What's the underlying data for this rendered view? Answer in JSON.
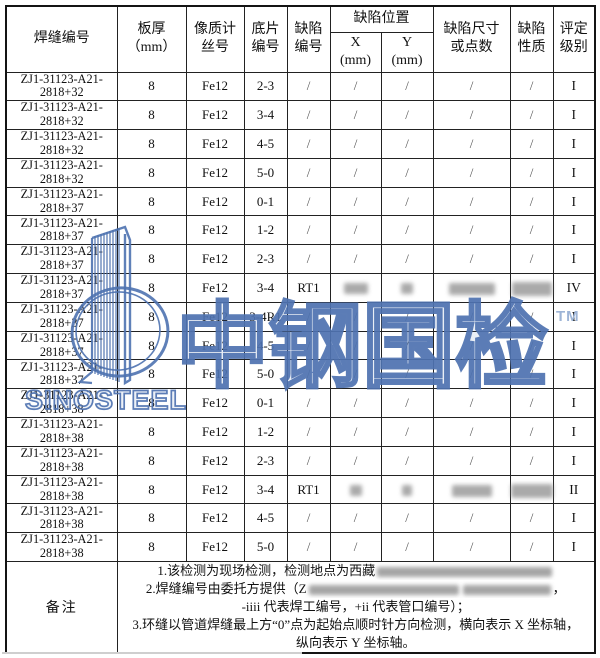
{
  "header": {
    "weld_no": "焊缝编号",
    "thickness_l1": "板厚",
    "thickness_l2": "（mm）",
    "iqi_l1": "像质计",
    "iqi_l2": "丝号",
    "film_l1": "底片",
    "film_l2": "编号",
    "defect_l1": "缺陷",
    "defect_l2": "编号",
    "position": "缺陷位置",
    "x_l1": "X",
    "x_l2": "(mm)",
    "y_l1": "Y",
    "y_l2": "(mm)",
    "size_l1": "缺陷尺寸",
    "size_l2": "或点数",
    "nature_l1": "缺陷",
    "nature_l2": "性质",
    "level_l1": "评定",
    "level_l2": "级别"
  },
  "rows": [
    {
      "weld_line1": "ZJ1-31123-A21-",
      "weld_line2": "2818+32",
      "thickness": "8",
      "iqi": "Fe12",
      "film": "2-3",
      "defect": "/",
      "x": "/",
      "y": "/",
      "size": "/",
      "nature": "/",
      "level": "I"
    },
    {
      "weld_line1": "ZJ1-31123-A21-",
      "weld_line2": "2818+32",
      "thickness": "8",
      "iqi": "Fe12",
      "film": "3-4",
      "defect": "/",
      "x": "/",
      "y": "/",
      "size": "/",
      "nature": "/",
      "level": "I"
    },
    {
      "weld_line1": "ZJ1-31123-A21-",
      "weld_line2": "2818+32",
      "thickness": "8",
      "iqi": "Fe12",
      "film": "4-5",
      "defect": "/",
      "x": "/",
      "y": "/",
      "size": "/",
      "nature": "/",
      "level": "I"
    },
    {
      "weld_line1": "ZJ1-31123-A21-",
      "weld_line2": "2818+32",
      "thickness": "8",
      "iqi": "Fe12",
      "film": "5-0",
      "defect": "/",
      "x": "/",
      "y": "/",
      "size": "/",
      "nature": "/",
      "level": "I"
    },
    {
      "weld_line1": "ZJ1-31123-A21-",
      "weld_line2": "2818+37",
      "thickness": "8",
      "iqi": "Fe12",
      "film": "0-1",
      "defect": "/",
      "x": "/",
      "y": "/",
      "size": "/",
      "nature": "/",
      "level": "I"
    },
    {
      "weld_line1": "ZJ1-31123-A21-",
      "weld_line2": "2818+37",
      "thickness": "8",
      "iqi": "Fe12",
      "film": "1-2",
      "defect": "/",
      "x": "/",
      "y": "/",
      "size": "/",
      "nature": "/",
      "level": "I"
    },
    {
      "weld_line1": "ZJ1-31123-A21-",
      "weld_line2": "2818+37",
      "thickness": "8",
      "iqi": "Fe12",
      "film": "2-3",
      "defect": "/",
      "x": "/",
      "y": "/",
      "size": "/",
      "nature": "/",
      "level": "I"
    },
    {
      "weld_line1": "ZJ1-31123-A21-",
      "weld_line2": "2818+37",
      "thickness": "8",
      "iqi": "Fe12",
      "film": "3-4",
      "defect": "RT1",
      "x": "",
      "y": "",
      "size": "",
      "nature": "",
      "level": "IV",
      "redacted": {
        "x": {
          "w": 24,
          "h": 11
        },
        "y": {
          "w": 12,
          "h": 11
        },
        "size": {
          "w": 46,
          "h": 12
        },
        "nature": {
          "w": 40,
          "h": 14
        }
      }
    },
    {
      "weld_line1": "ZJ1-31123-A21-",
      "weld_line2": "2818+37",
      "thickness": "8",
      "iqi": "Fe12",
      "film": "3-4R1",
      "defect": "/",
      "x": "/",
      "y": "/",
      "size": "/",
      "nature": "/",
      "level": "I"
    },
    {
      "weld_line1": "ZJ1-31123-A21-",
      "weld_line2": "2818+37",
      "thickness": "8",
      "iqi": "Fe12",
      "film": "4-5",
      "defect": "/",
      "x": "/",
      "y": "/",
      "size": "/",
      "nature": "/",
      "level": "I"
    },
    {
      "weld_line1": "ZJ1-31123-A21-",
      "weld_line2": "2818+37",
      "thickness": "8",
      "iqi": "Fe12",
      "film": "5-0",
      "defect": "/",
      "x": "/",
      "y": "/",
      "size": "/",
      "nature": "/",
      "level": "I"
    },
    {
      "weld_line1": "ZJ1-31123-A21-",
      "weld_line2": "2818+38",
      "thickness": "8",
      "iqi": "Fe12",
      "film": "0-1",
      "defect": "/",
      "x": "/",
      "y": "/",
      "size": "/",
      "nature": "/",
      "level": "I"
    },
    {
      "weld_line1": "ZJ1-31123-A21-",
      "weld_line2": "2818+38",
      "thickness": "8",
      "iqi": "Fe12",
      "film": "1-2",
      "defect": "/",
      "x": "/",
      "y": "/",
      "size": "/",
      "nature": "/",
      "level": "I"
    },
    {
      "weld_line1": "ZJ1-31123-A21-",
      "weld_line2": "2818+38",
      "thickness": "8",
      "iqi": "Fe12",
      "film": "2-3",
      "defect": "/",
      "x": "/",
      "y": "/",
      "size": "/",
      "nature": "/",
      "level": "I"
    },
    {
      "weld_line1": "ZJ1-31123-A21-",
      "weld_line2": "2818+38",
      "thickness": "8",
      "iqi": "Fe12",
      "film": "3-4",
      "defect": "RT1",
      "x": "",
      "y": "",
      "size": "",
      "nature": "",
      "level": "II",
      "redacted": {
        "x": {
          "w": 12,
          "h": 11
        },
        "y": {
          "w": 10,
          "h": 11
        },
        "size": {
          "w": 40,
          "h": 12
        },
        "nature": {
          "w": 42,
          "h": 14
        }
      }
    },
    {
      "weld_line1": "ZJ1-31123-A21-",
      "weld_line2": "2818+38",
      "thickness": "8",
      "iqi": "Fe12",
      "film": "4-5",
      "defect": "/",
      "x": "/",
      "y": "/",
      "size": "/",
      "nature": "/",
      "level": "I"
    },
    {
      "weld_line1": "ZJ1-31123-A21-",
      "weld_line2": "2818+38",
      "thickness": "8",
      "iqi": "Fe12",
      "film": "5-0",
      "defect": "/",
      "x": "/",
      "y": "/",
      "size": "/",
      "nature": "/",
      "level": "I"
    }
  ],
  "notes": {
    "label": "备注",
    "lines": [
      [
        {
          "t": "1.该检测为现场检测，检测地点为西藏"
        },
        {
          "r": 175
        }
      ],
      [
        {
          "t": "2.焊缝编号由委托方提供（Z"
        },
        {
          "r": 150
        },
        {
          "r": 88
        },
        {
          "t": "，"
        }
      ],
      [
        {
          "t": "-iiii 代表焊工编号，+ii 代表管口编号）；"
        }
      ],
      [
        {
          "t": "3.环缝以管道焊缝最上方“0”点为起始点顺时针方向检测，横向表示 X 坐标轴，"
        }
      ],
      [
        {
          "t": "纵向表示 Y 坐标轴。"
        }
      ]
    ]
  },
  "watermark": {
    "brand_text": "SINOSTEEL",
    "cn_text": "中钢国检",
    "tm": "TM",
    "color": "#4e72b0"
  }
}
